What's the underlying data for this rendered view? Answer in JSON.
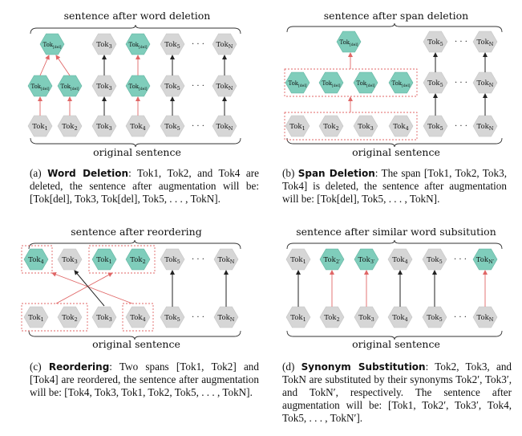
{
  "colors": {
    "teal": "#7fcdbb",
    "gray": "#d6d6d6",
    "red": "#e06666",
    "black": "#222222"
  },
  "panels": {
    "a": {
      "top_label": "sentence after word deletion",
      "bottom_label": "original sentence",
      "orig": [
        "Tok",
        "Tok",
        "Tok",
        "Tok",
        "Tok",
        "Tok"
      ],
      "orig_sub": [
        "1",
        "2",
        "3",
        "4",
        "5",
        "N"
      ],
      "mid": [
        "Tok",
        "Tok",
        "Tok",
        "Tok",
        "Tok",
        "Tok"
      ],
      "mid_sub": [
        "[del]",
        "[del]",
        "3",
        "[del]",
        "5",
        "N"
      ],
      "top": [
        "Tok",
        "Tok",
        "Tok",
        "Tok",
        "Tok"
      ],
      "top_sub": [
        "[del]",
        "3",
        "[del]",
        "5",
        "N"
      ],
      "dots": "· · ·",
      "caption": {
        "label": "(a)",
        "title": "Word Deletion",
        "text": ": Tok1, Tok2, and Tok4 are deleted, the sentence after augmentation will be: [Tok[del], Tok3, Tok[del], Tok5, . . . , TokN]."
      }
    },
    "b": {
      "top_label": "sentence after span deletion",
      "bottom_label": "original sentence",
      "orig": [
        "Tok",
        "Tok",
        "Tok",
        "Tok",
        "Tok",
        "Tok"
      ],
      "orig_sub": [
        "1",
        "2",
        "3",
        "4",
        "5",
        "N"
      ],
      "mid": [
        "Tok",
        "Tok",
        "Tok",
        "Tok",
        "Tok",
        "Tok"
      ],
      "mid_sub": [
        "[del]",
        "[del]",
        "[del]",
        "[del]",
        "5",
        "N"
      ],
      "top": [
        "Tok",
        "Tok",
        "Tok"
      ],
      "top_sub": [
        "[del]",
        "5",
        "N"
      ],
      "dots": "· · ·",
      "caption": {
        "label": "(b)",
        "title": "Span Deletion",
        "text": ": The span [Tok1, Tok2, Tok3, Tok4] is deleted, the sentence after augmentation will be: [Tok[del], Tok5, . . . , TokN]."
      }
    },
    "c": {
      "top_label": "sentence after reordering",
      "bottom_label": "original sentence",
      "orig": [
        "Tok",
        "Tok",
        "Tok",
        "Tok",
        "Tok",
        "Tok"
      ],
      "orig_sub": [
        "1",
        "2",
        "3",
        "4",
        "5",
        "N"
      ],
      "top": [
        "Tok",
        "Tok",
        "Tok",
        "Tok",
        "Tok",
        "Tok"
      ],
      "top_sub": [
        "4",
        "3",
        "1",
        "2",
        "5",
        "N"
      ],
      "dots": "· · ·",
      "caption": {
        "label": "(c)",
        "title": "Reordering",
        "text": ": Two spans [Tok1, Tok2] and [Tok4] are reordered, the sentence after augmentation will be: [Tok4, Tok3, Tok1, Tok2, Tok5, . . . , TokN]."
      }
    },
    "d": {
      "top_label": "sentence after similar word subsitution",
      "bottom_label": "original sentence",
      "orig": [
        "Tok",
        "Tok",
        "Tok",
        "Tok",
        "Tok",
        "Tok"
      ],
      "orig_sub": [
        "1",
        "2",
        "3",
        "4",
        "5",
        "N"
      ],
      "top": [
        "Tok",
        "Tok",
        "Tok",
        "Tok",
        "Tok",
        "Tok"
      ],
      "top_sub": [
        "1",
        "2′",
        "3′",
        "4",
        "5",
        "N′"
      ],
      "dots": "· · ·",
      "caption": {
        "label": "(d)",
        "title": "Synonym Substitution",
        "text": ": Tok2, Tok3, and TokN are substituted by their synonyms Tok2′, Tok3′, and TokN′, respectively. The sentence after augmentation will be: [Tok1, Tok2′, Tok3′, Tok4, Tok5, . . . , TokN′]."
      }
    }
  }
}
